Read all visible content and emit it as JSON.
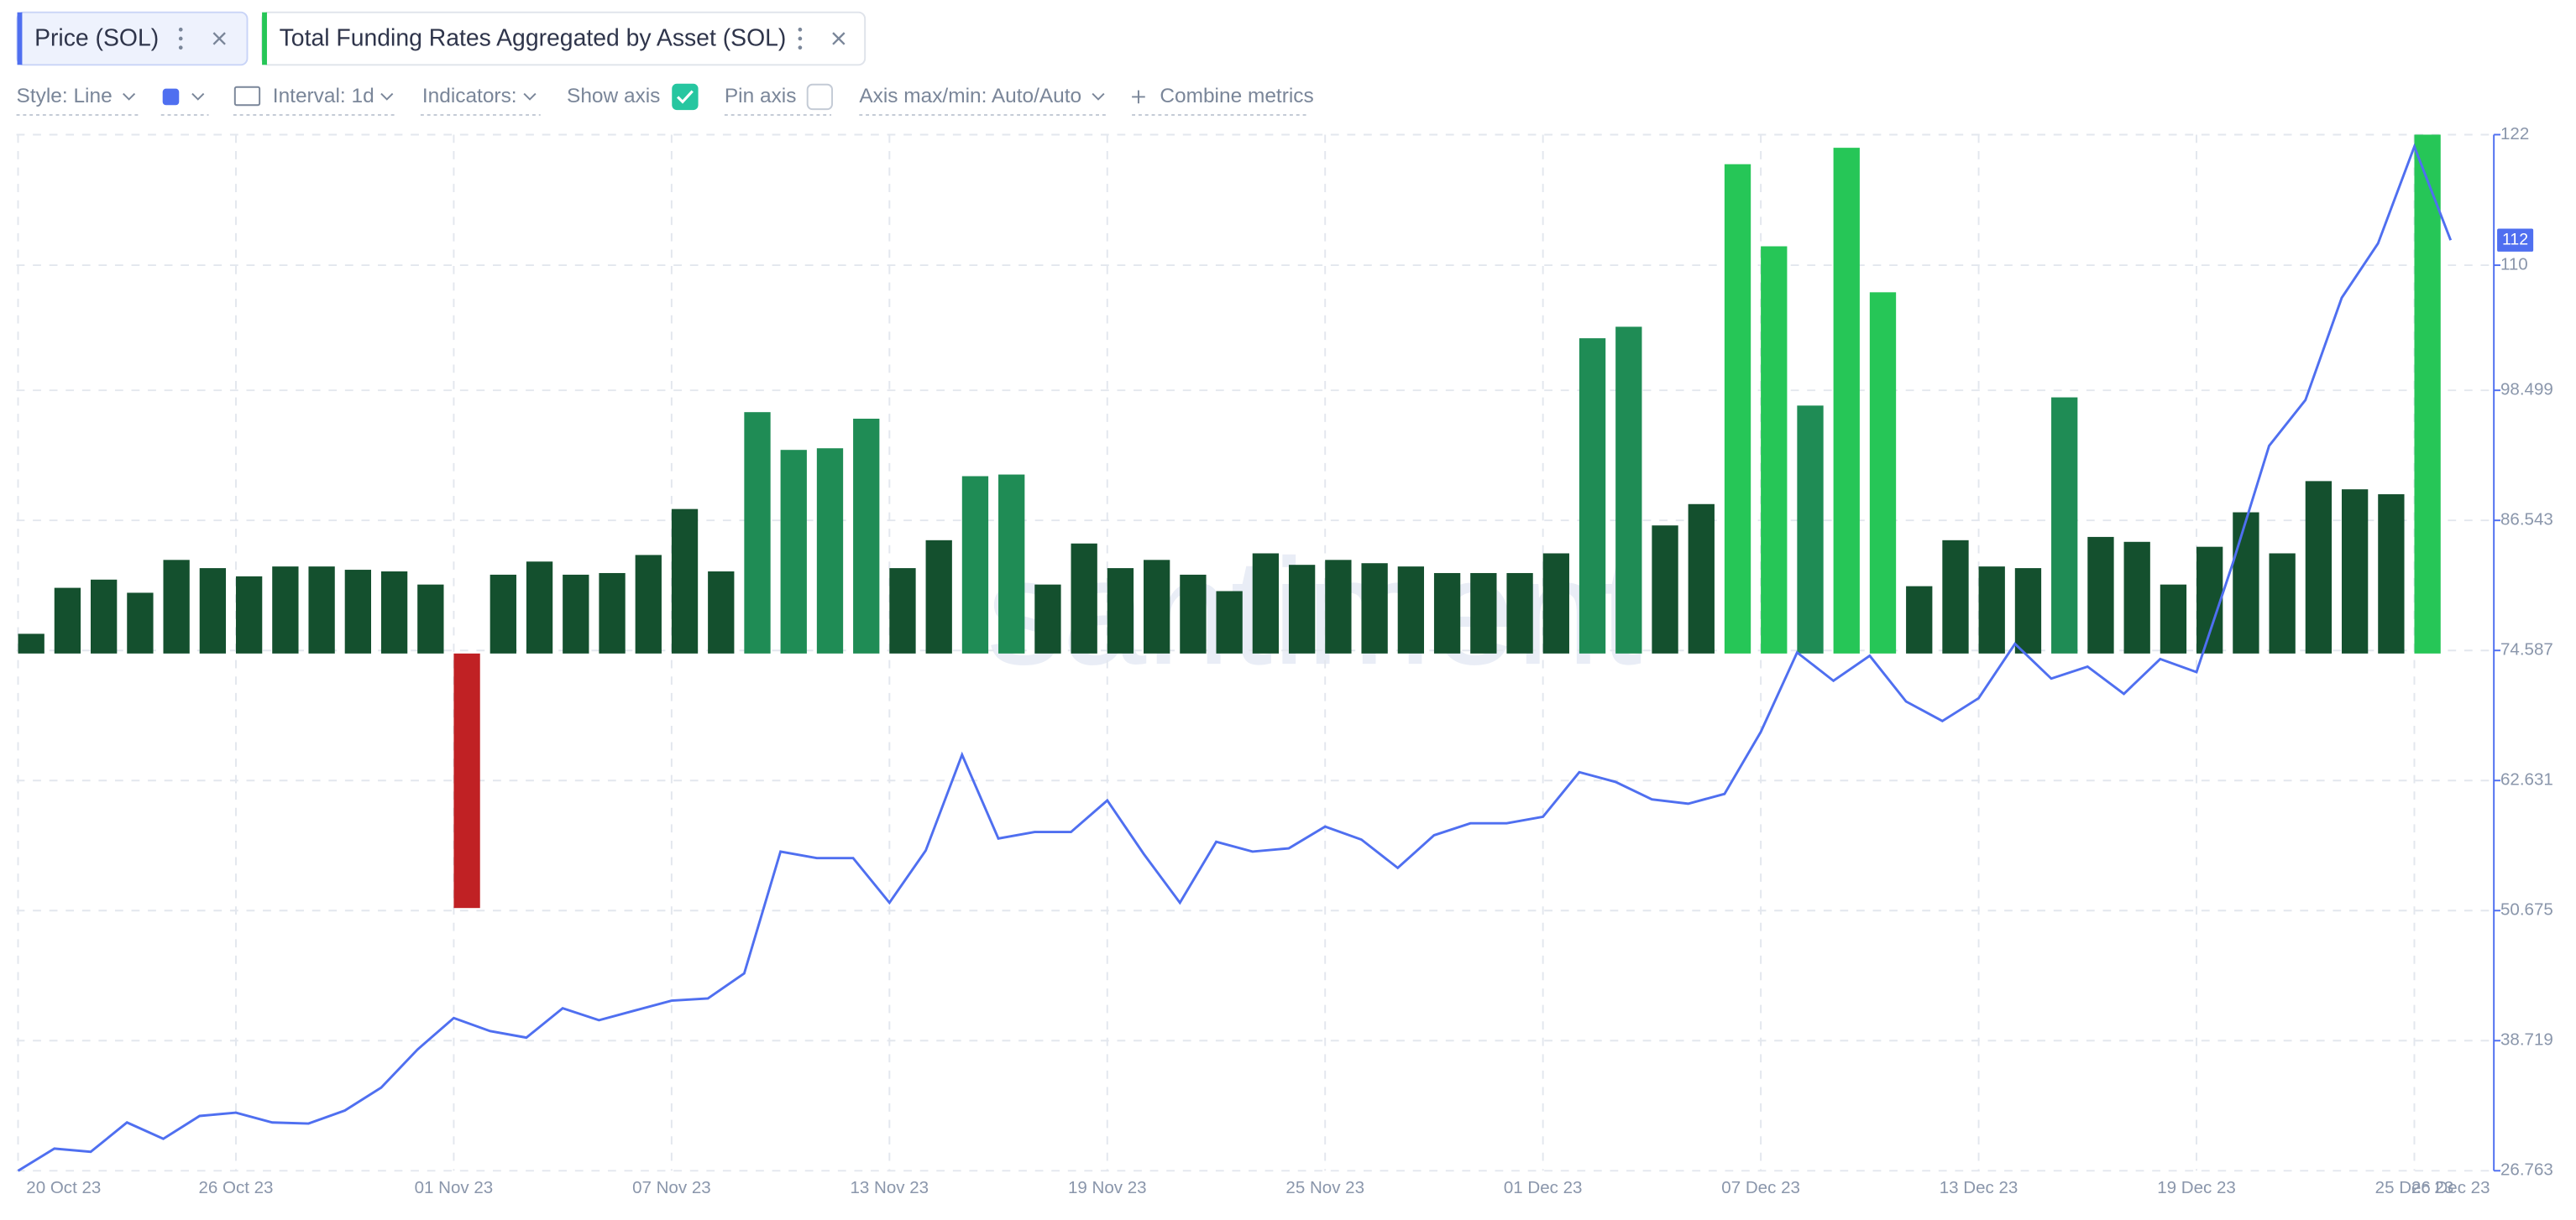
{
  "toolbar": {
    "tabs": [
      "Price (SOL)",
      "Total Funding Rates Aggregated by Asset (SOL)"
    ],
    "style": "Style: Line",
    "interval": "Interval: 1d",
    "indicators": "Indicators:",
    "show_axis": "Show axis",
    "pin_axis": "Pin axis",
    "axis_minmax": "Axis max/min: Auto/Auto",
    "combine": "Combine metrics"
  },
  "chart_data": {
    "type": "combo",
    "watermark": "santiment",
    "categories": [
      "20 Oct 23",
      null,
      null,
      null,
      null,
      null,
      "26 Oct 23",
      null,
      null,
      null,
      null,
      null,
      "01 Nov 23",
      null,
      null,
      null,
      null,
      null,
      "07 Nov 23",
      null,
      null,
      null,
      null,
      null,
      "13 Nov 23",
      null,
      null,
      null,
      null,
      null,
      "19 Nov 23",
      null,
      null,
      null,
      null,
      null,
      "25 Nov 23",
      null,
      null,
      null,
      null,
      null,
      "01 Dec 23",
      null,
      null,
      null,
      null,
      null,
      "07 Dec 23",
      null,
      null,
      null,
      null,
      null,
      "13 Dec 23",
      null,
      null,
      null,
      null,
      null,
      "19 Dec 23",
      null,
      null,
      null,
      null,
      null,
      "25 Dec 23",
      "26 Dec 23"
    ],
    "ylim": [
      26.763,
      122
    ],
    "yticks": [
      122,
      110,
      98.499,
      86.543,
      74.587,
      62.631,
      50.675,
      38.719,
      26.763
    ],
    "y2lim": [
      -315,
      316
    ],
    "grid": true,
    "series": [
      {
        "name": "Price (SOL)",
        "kind": "line",
        "color": "#4f6ff0",
        "last_value_label": "112",
        "values": [
          26.76,
          28.8,
          28.5,
          31.2,
          29.7,
          31.8,
          32.1,
          31.2,
          31.1,
          32.3,
          34.4,
          37.9,
          40.8,
          39.6,
          39.0,
          41.7,
          40.6,
          41.5,
          42.4,
          42.6,
          44.9,
          56.1,
          55.5,
          55.5,
          51.4,
          56.2,
          65.0,
          57.3,
          57.9,
          57.9,
          60.8,
          55.9,
          51.4,
          57.0,
          56.1,
          56.4,
          58.4,
          57.2,
          54.6,
          57.6,
          58.7,
          58.7,
          59.3,
          63.4,
          62.5,
          60.9,
          60.5,
          61.4,
          67.1,
          74.4,
          71.8,
          74.1,
          69.9,
          68.1,
          70.2,
          75.2,
          72.0,
          73.1,
          70.6,
          73.8,
          72.6,
          82.6,
          93.4,
          97.6,
          107.0,
          112.0,
          120.9,
          112.3
        ]
      },
      {
        "name": "Total Funding Rates Aggregated by Asset (SOL)",
        "kind": "bar",
        "axis": "y2",
        "values": [
          12,
          40,
          45,
          37,
          57,
          52,
          47,
          53,
          53,
          51,
          50,
          42,
          -155,
          48,
          56,
          48,
          49,
          60,
          88,
          50,
          147,
          124,
          125,
          143,
          52,
          69,
          108,
          109,
          42,
          67,
          52,
          57,
          48,
          38,
          61,
          54,
          57,
          55,
          53,
          49,
          49,
          49,
          61,
          192,
          199,
          78,
          91,
          298,
          248,
          151,
          308,
          220,
          41,
          69,
          53,
          52,
          156,
          71,
          68,
          42,
          65,
          86,
          61,
          105,
          100,
          97,
          316,
          null
        ],
        "colors": [
          "#14502e",
          "#14502e",
          "#14502e",
          "#14502e",
          "#14502e",
          "#14502e",
          "#14502e",
          "#14502e",
          "#14502e",
          "#14502e",
          "#14502e",
          "#14502e",
          "#c02124",
          "#14502e",
          "#14502e",
          "#14502e",
          "#14502e",
          "#14502e",
          "#14502e",
          "#14502e",
          "#1f8c55",
          "#1f8c55",
          "#1f8c55",
          "#1f8c55",
          "#14502e",
          "#14502e",
          "#1f8c55",
          "#1f8c55",
          "#14502e",
          "#14502e",
          "#14502e",
          "#14502e",
          "#14502e",
          "#14502e",
          "#14502e",
          "#14502e",
          "#14502e",
          "#14502e",
          "#14502e",
          "#14502e",
          "#14502e",
          "#14502e",
          "#14502e",
          "#1f8c55",
          "#1f8c55",
          "#14502e",
          "#14502e",
          "#26c657",
          "#26c657",
          "#1f8c55",
          "#26c657",
          "#26c657",
          "#14502e",
          "#14502e",
          "#14502e",
          "#14502e",
          "#1f8c55",
          "#14502e",
          "#14502e",
          "#14502e",
          "#14502e",
          "#14502e",
          "#14502e",
          "#14502e",
          "#14502e",
          "#14502e",
          "#26c657",
          null
        ]
      }
    ]
  }
}
